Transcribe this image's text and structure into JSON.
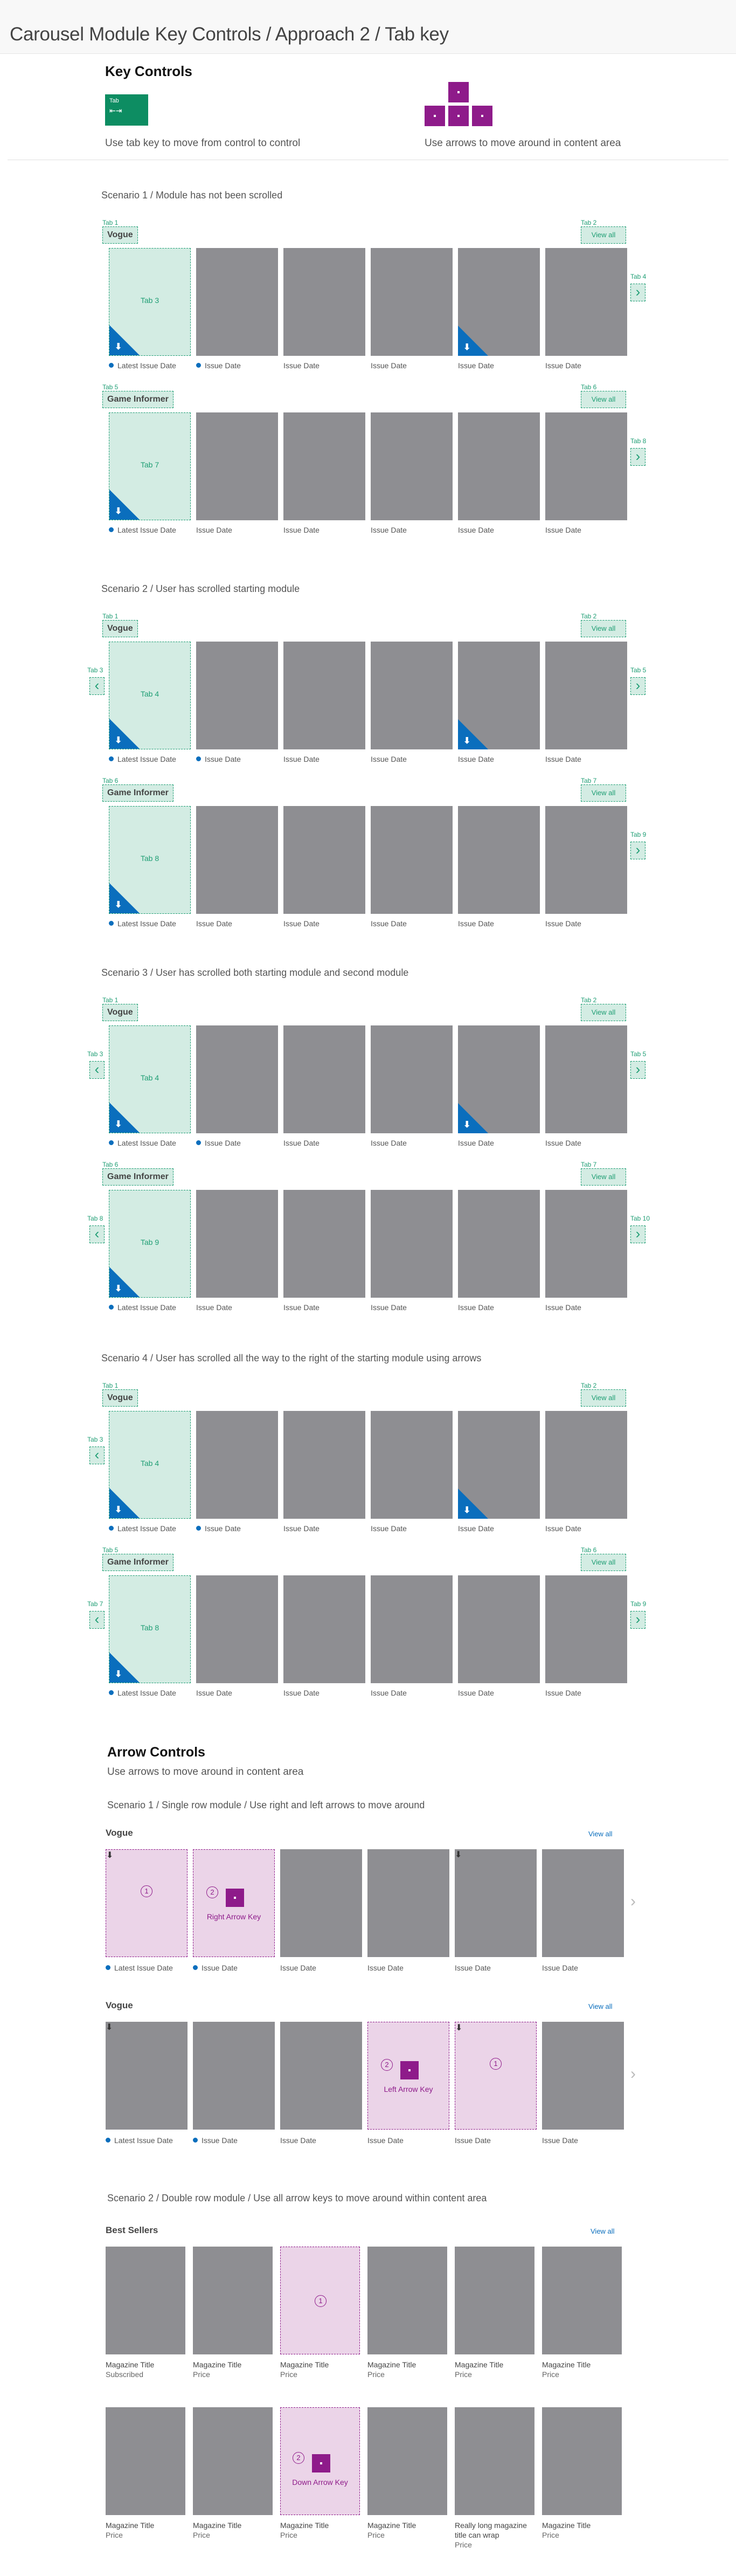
{
  "page_title": "Carousel Module Key Controls / Approach 2 / Tab key",
  "key_controls": {
    "title": "Key Controls",
    "tab_key_label": "Tab",
    "tab_caption": "Use tab key to move from control to control",
    "arrow_caption": "Use arrows to move around in content area"
  },
  "tab_scenarios": [
    {
      "title": "Scenario 1 / Module has not been scrolled",
      "modules": [
        {
          "name": "Vogue",
          "view_all": "View all",
          "tab_title": "Tab 1",
          "tab_viewall": "Tab 2",
          "tab_left": "",
          "tab_right": "Tab 4",
          "tab_tile": "Tab 3",
          "has_left": false,
          "dl": [
            true,
            false,
            false,
            false,
            true,
            false
          ],
          "dates": [
            "Latest Issue Date",
            "Issue Date",
            "Issue Date",
            "Issue Date",
            "Issue Date",
            "Issue Date"
          ],
          "dots": [
            true,
            true,
            false,
            false,
            false,
            false
          ]
        },
        {
          "name": "Game Informer",
          "view_all": "View all",
          "tab_title": "Tab 5",
          "tab_viewall": "Tab 6",
          "tab_left": "",
          "tab_right": "Tab 8",
          "tab_tile": "Tab 7",
          "has_left": false,
          "dl": [
            true,
            false,
            false,
            false,
            false,
            false
          ],
          "dates": [
            "Latest Issue Date",
            "Issue Date",
            "Issue Date",
            "Issue Date",
            "Issue Date",
            "Issue Date"
          ],
          "dots": [
            true,
            false,
            false,
            false,
            false,
            false
          ]
        }
      ]
    },
    {
      "title": "Scenario 2 / User has scrolled starting module",
      "modules": [
        {
          "name": "Vogue",
          "view_all": "View all",
          "tab_title": "Tab 1",
          "tab_viewall": "Tab 2",
          "tab_left": "Tab 3",
          "tab_right": "Tab 5",
          "tab_tile": "Tab 4",
          "has_left": true,
          "dl": [
            true,
            false,
            false,
            false,
            true,
            false
          ],
          "dates": [
            "Latest Issue Date",
            "Issue Date",
            "Issue Date",
            "Issue Date",
            "Issue Date",
            "Issue Date"
          ],
          "dots": [
            true,
            true,
            false,
            false,
            false,
            false
          ]
        },
        {
          "name": "Game Informer",
          "view_all": "View all",
          "tab_title": "Tab 6",
          "tab_viewall": "Tab 7",
          "tab_left": "",
          "tab_right": "Tab 9",
          "tab_tile": "Tab 8",
          "has_left": false,
          "dl": [
            true,
            false,
            false,
            false,
            false,
            false
          ],
          "dates": [
            "Latest Issue Date",
            "Issue Date",
            "Issue Date",
            "Issue Date",
            "Issue Date",
            "Issue Date"
          ],
          "dots": [
            true,
            false,
            false,
            false,
            false,
            false
          ]
        }
      ]
    },
    {
      "title": "Scenario 3 / User has scrolled both starting module and second module",
      "modules": [
        {
          "name": "Vogue",
          "view_all": "View all",
          "tab_title": "Tab 1",
          "tab_viewall": "Tab 2",
          "tab_left": "Tab 3",
          "tab_right": "Tab 5",
          "tab_tile": "Tab 4",
          "has_left": true,
          "dl": [
            true,
            false,
            false,
            false,
            true,
            false
          ],
          "dates": [
            "Latest Issue Date",
            "Issue Date",
            "Issue Date",
            "Issue Date",
            "Issue Date",
            "Issue Date"
          ],
          "dots": [
            true,
            true,
            false,
            false,
            false,
            false
          ]
        },
        {
          "name": "Game Informer",
          "view_all": "View all",
          "tab_title": "Tab 6",
          "tab_viewall": "Tab 7",
          "tab_left": "Tab 8",
          "tab_right": "Tab 10",
          "tab_tile": "Tab 9",
          "has_left": true,
          "dl": [
            true,
            false,
            false,
            false,
            false,
            false
          ],
          "dates": [
            "Latest Issue Date",
            "Issue Date",
            "Issue Date",
            "Issue Date",
            "Issue Date",
            "Issue Date"
          ],
          "dots": [
            true,
            false,
            false,
            false,
            false,
            false
          ]
        }
      ]
    },
    {
      "title": "Scenario 4 / User has scrolled all the way to the right of the starting module using arrows",
      "modules": [
        {
          "name": "Vogue",
          "view_all": "View all",
          "tab_title": "Tab 1",
          "tab_viewall": "Tab 2",
          "tab_left": "Tab 3",
          "tab_right": "",
          "tab_tile": "Tab 4",
          "has_left": true,
          "dl": [
            true,
            false,
            false,
            false,
            true,
            false
          ],
          "dates": [
            "Latest Issue Date",
            "Issue Date",
            "Issue Date",
            "Issue Date",
            "Issue Date",
            "Issue Date"
          ],
          "dots": [
            true,
            true,
            false,
            false,
            false,
            false
          ]
        },
        {
          "name": "Game Informer",
          "view_all": "View all",
          "tab_title": "Tab 5",
          "tab_viewall": "Tab 6",
          "tab_left": "Tab 7",
          "tab_right": "Tab 9",
          "tab_tile": "Tab 8",
          "has_left": true,
          "dl": [
            true,
            false,
            false,
            false,
            false,
            false
          ],
          "dates": [
            "Latest Issue Date",
            "Issue Date",
            "Issue Date",
            "Issue Date",
            "Issue Date",
            "Issue Date"
          ],
          "dots": [
            true,
            false,
            false,
            false,
            false,
            false
          ]
        }
      ]
    }
  ],
  "arrow_controls": {
    "title": "Arrow Controls",
    "subtitle": "Use arrows to move around in content area",
    "scenario1": "Scenario 1 / Single row module / Use right and left arrows to move around",
    "scenario2": "Scenario 2 / Double row module / Use all arrow keys to move around within content area",
    "rows": [
      {
        "name": "Vogue",
        "view_all": "View all",
        "tiles": [
          {
            "mag": true,
            "num": "1",
            "key": "",
            "dl": true
          },
          {
            "mag": true,
            "num": "2",
            "key": "Right Arrow Key",
            "dl": false
          },
          {
            "mag": false
          },
          {
            "mag": false
          },
          {
            "mag": false,
            "dl": true
          },
          {
            "mag": false
          }
        ],
        "dates": [
          "Latest Issue Date",
          "Issue Date",
          "Issue Date",
          "Issue Date",
          "Issue Date",
          "Issue Date"
        ],
        "dots": [
          true,
          true,
          false,
          false,
          false,
          false
        ]
      },
      {
        "name": "Vogue",
        "view_all": "View all",
        "tiles": [
          {
            "mag": false,
            "dl": true
          },
          {
            "mag": false
          },
          {
            "mag": false
          },
          {
            "mag": true,
            "num": "2",
            "key": "Left Arrow Key",
            "dl": false
          },
          {
            "mag": true,
            "num": "1",
            "key": "",
            "dl": true
          },
          {
            "mag": false
          }
        ],
        "dates": [
          "Latest Issue Date",
          "Issue Date",
          "Issue Date",
          "Issue Date",
          "Issue Date",
          "Issue Date"
        ],
        "dots": [
          true,
          true,
          false,
          false,
          false,
          false
        ]
      }
    ],
    "best_sellers": {
      "name": "Best Sellers",
      "view_all": "View all",
      "row1": [
        {
          "title": "Magazine Title",
          "sub": "Subscribed"
        },
        {
          "title": "Magazine Title",
          "sub": "Price"
        },
        {
          "title": "Magazine Title",
          "sub": "Price",
          "mag": true,
          "num": "1"
        },
        {
          "title": "Magazine Title",
          "sub": "Price"
        },
        {
          "title": "Magazine Title",
          "sub": "Price"
        },
        {
          "title": "Magazine Title",
          "sub": "Price"
        }
      ],
      "row2": [
        {
          "title": "Magazine Title",
          "sub": "Price"
        },
        {
          "title": "Magazine Title",
          "sub": "Price"
        },
        {
          "title": "Magazine Title",
          "sub": "Price",
          "mag": true,
          "num": "2",
          "key": "Down Arrow Key"
        },
        {
          "title": "Magazine Title",
          "sub": "Price"
        },
        {
          "title": "Really long magazine title can wrap",
          "sub": "Price"
        },
        {
          "title": "Magazine Title",
          "sub": "Price"
        }
      ]
    }
  },
  "colors": {
    "teal": "#1f9e74",
    "teal_fill": "#d3ece3",
    "magenta": "#8e1b8a",
    "magenta_fill": "#ebd4e8",
    "blue": "#0a6ebd",
    "tile_gray": "#8e8e92"
  },
  "icons": [
    "download-icon",
    "chevron-left-icon",
    "chevron-right-icon",
    "tab-key-icon",
    "arrow-keys-icon"
  ]
}
